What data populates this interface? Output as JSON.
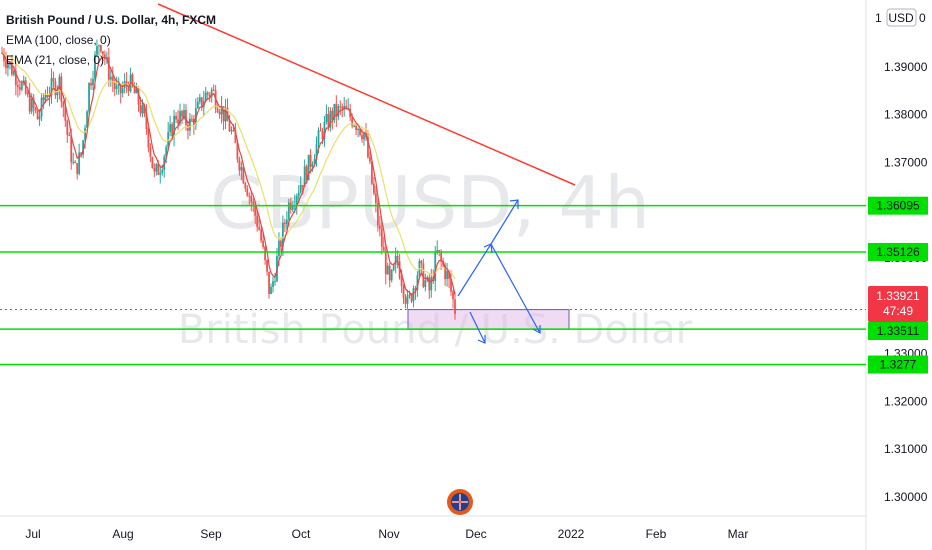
{
  "chart_data": {
    "type": "candlestick",
    "title": "British Pound / U.S. Dollar, 4h, FXCM",
    "symbol": "GBPUSD",
    "interval": "4h",
    "source": "FXCM",
    "currency": "USD",
    "watermark": "GBPUSD, 4h",
    "watermark_subtitle": "British Pound / U.S. Dollar",
    "indicators": [
      {
        "name": "EMA (100, close, 0)",
        "color": "#e8e06a"
      },
      {
        "name": "EMA (21, close, 0)",
        "color": "#e04848"
      }
    ],
    "x_ticks": [
      "Jul",
      "Aug",
      "Sep",
      "Oct",
      "Nov",
      "Dec",
      "2022",
      "Feb",
      "Mar"
    ],
    "y_ticks": [
      "1.39000",
      "1.38000",
      "1.37000",
      "1.36000",
      "1.35000",
      "1.34000",
      "1.33000",
      "1.32000",
      "1.31000",
      "1.30000"
    ],
    "y_top_tick": "1",
    "y_top_tick_suffix": "0",
    "ylim": [
      1.296,
      1.404
    ],
    "horizontal_levels": [
      {
        "value": 1.36095,
        "label": "1.36095",
        "color": "#00e000"
      },
      {
        "value": 1.35126,
        "label": "1.35126",
        "color": "#00e000"
      },
      {
        "value": 1.33511,
        "label": "1.33511",
        "color": "#00e000"
      },
      {
        "value": 1.3277,
        "label": "1.3277",
        "color": "#00e000"
      }
    ],
    "current_price": {
      "value": 1.33921,
      "label": "1.33921",
      "countdown": "47:49",
      "color": "#f23645"
    },
    "trendline": {
      "color": "#ff3b30"
    },
    "support_zone": {
      "low": 1.3351,
      "high": 1.3392
    },
    "projection_color": "#2962ff",
    "price_path": [
      [
        0.0,
        1.393
      ],
      [
        0.02,
        1.388
      ],
      [
        0.04,
        1.382
      ],
      [
        0.05,
        1.379
      ],
      [
        0.06,
        1.3845
      ],
      [
        0.08,
        1.387
      ],
      [
        0.09,
        1.376
      ],
      [
        0.1,
        1.368
      ],
      [
        0.11,
        1.372
      ],
      [
        0.12,
        1.386
      ],
      [
        0.135,
        1.396
      ],
      [
        0.145,
        1.39
      ],
      [
        0.16,
        1.384
      ],
      [
        0.175,
        1.387
      ],
      [
        0.19,
        1.382
      ],
      [
        0.2,
        1.377
      ],
      [
        0.21,
        1.367
      ],
      [
        0.22,
        1.37
      ],
      [
        0.24,
        1.38
      ],
      [
        0.26,
        1.378
      ],
      [
        0.28,
        1.384
      ],
      [
        0.29,
        1.385
      ],
      [
        0.3,
        1.382
      ],
      [
        0.315,
        1.377
      ],
      [
        0.33,
        1.369
      ],
      [
        0.34,
        1.364
      ],
      [
        0.355,
        1.356
      ],
      [
        0.37,
        1.342
      ],
      [
        0.38,
        1.35
      ],
      [
        0.395,
        1.361
      ],
      [
        0.41,
        1.365
      ],
      [
        0.425,
        1.37
      ],
      [
        0.44,
        1.376
      ],
      [
        0.455,
        1.38
      ],
      [
        0.47,
        1.381
      ],
      [
        0.485,
        1.379
      ],
      [
        0.5,
        1.376
      ],
      [
        0.51,
        1.366
      ],
      [
        0.52,
        1.356
      ],
      [
        0.535,
        1.344
      ],
      [
        0.545,
        1.35
      ],
      [
        0.56,
        1.34
      ],
      [
        0.575,
        1.348
      ],
      [
        0.59,
        1.343
      ],
      [
        0.6,
        1.351
      ],
      [
        0.615,
        1.346
      ],
      [
        0.625,
        1.3392
      ]
    ]
  }
}
